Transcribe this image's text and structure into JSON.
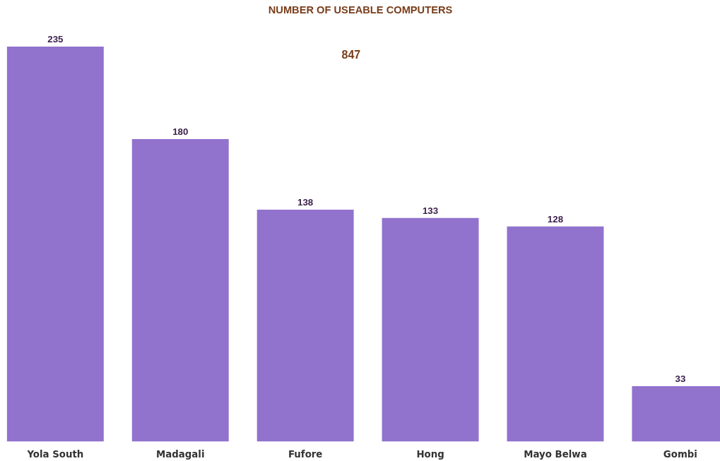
{
  "chart_data": {
    "type": "bar",
    "title": "NUMBER OF USEABLE COMPUTERS",
    "categories": [
      "Yola South",
      "Madagali",
      "Fufore",
      "Hong",
      "Mayo Belwa",
      "Gombi"
    ],
    "values": [
      235,
      180,
      138,
      133,
      128,
      33
    ],
    "color": "#9172cd",
    "data_labels": true,
    "annotations": [
      "847"
    ],
    "grid": false
  }
}
